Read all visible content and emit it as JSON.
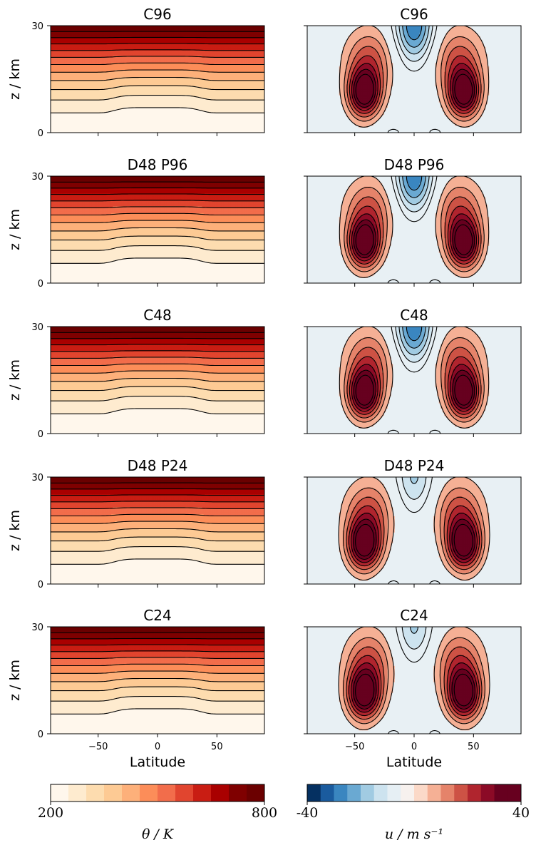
{
  "chart_data": {
    "type": "contour",
    "panels": [
      {
        "row": 0,
        "col": 0,
        "title": "C96",
        "field": "theta",
        "res": 96
      },
      {
        "row": 0,
        "col": 1,
        "title": "C96",
        "field": "u",
        "res": 96
      },
      {
        "row": 1,
        "col": 0,
        "title": "D48 P96",
        "field": "theta",
        "res": 96
      },
      {
        "row": 1,
        "col": 1,
        "title": "D48 P96",
        "field": "u",
        "res": 96
      },
      {
        "row": 2,
        "col": 0,
        "title": "C48",
        "field": "theta",
        "res": 48
      },
      {
        "row": 2,
        "col": 1,
        "title": "C48",
        "field": "u",
        "res": 48
      },
      {
        "row": 3,
        "col": 0,
        "title": "D48 P24",
        "field": "theta",
        "res": 24
      },
      {
        "row": 3,
        "col": 1,
        "title": "D48 P24",
        "field": "u",
        "res": 24
      },
      {
        "row": 4,
        "col": 0,
        "title": "C24",
        "field": "theta",
        "res": 24
      },
      {
        "row": 4,
        "col": 1,
        "title": "C24",
        "field": "u",
        "res": 24
      }
    ],
    "ylabel": "z / km",
    "xlabel": "Latitude",
    "yticks": [
      "0",
      "30"
    ],
    "ylim": [
      0,
      30
    ],
    "xticks": [
      "−50",
      "0",
      "50"
    ],
    "xtick_values": [
      -50,
      0,
      50
    ],
    "xlim": [
      -90,
      90
    ],
    "colorbars": [
      {
        "field": "theta",
        "min_label": "200",
        "max_label": "800",
        "label": "θ / K",
        "min": 200,
        "max": 800,
        "n_levels": 12,
        "cmap": "OrRd"
      },
      {
        "field": "u",
        "min_label": "-40",
        "max_label": "40",
        "label": "u / m s⁻¹",
        "min": -40,
        "max": 40,
        "n_levels": 16,
        "cmap": "RdBu_r"
      }
    ],
    "theta_colors": [
      "#fff7ec",
      "#feebcf",
      "#fddcaf",
      "#fdca94",
      "#fdb07a",
      "#fc8d59",
      "#f26d4b",
      "#e1452f",
      "#c91d13",
      "#a90000",
      "#7f0000",
      "#6b0000"
    ],
    "u_colors": [
      "#053061",
      "#1a5b9e",
      "#3a86c0",
      "#6aa9d2",
      "#a1cbe2",
      "#cde3ef",
      "#e6eff4",
      "#f7f1ee",
      "#fbd9c8",
      "#f5b095",
      "#e5836a",
      "#cd5245",
      "#b0252e",
      "#8b0a26",
      "#67001f",
      "#67001f"
    ]
  }
}
